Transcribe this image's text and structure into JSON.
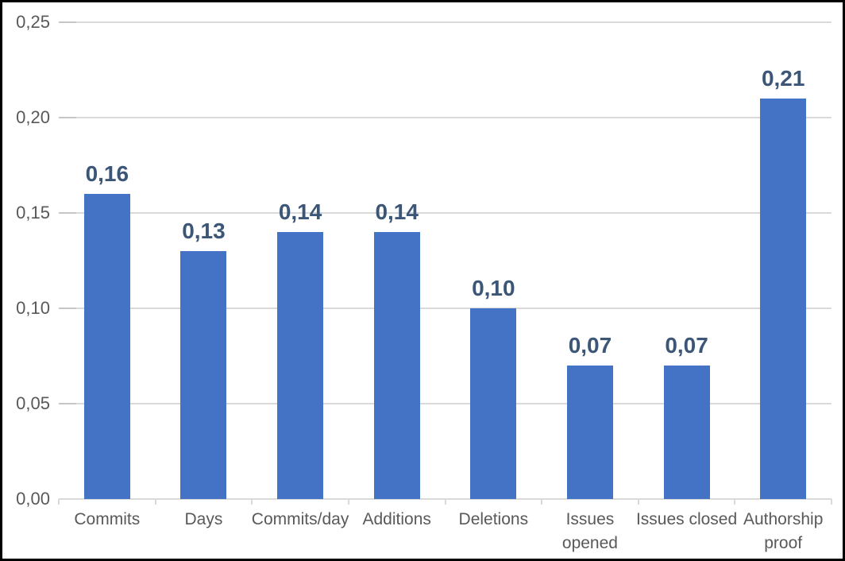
{
  "chart_data": {
    "type": "bar",
    "categories": [
      "Commits",
      "Days",
      "Commits/day",
      "Additions",
      "Deletions",
      "Issues\nopened",
      "Issues closed",
      "Authorship\nproof"
    ],
    "values": [
      0.16,
      0.13,
      0.14,
      0.14,
      0.1,
      0.07,
      0.07,
      0.21
    ],
    "value_labels": [
      "0,16",
      "0,13",
      "0,14",
      "0,14",
      "0,10",
      "0,07",
      "0,07",
      "0,21"
    ],
    "title": "",
    "xlabel": "",
    "ylabel": "",
    "ylim": [
      0,
      0.25
    ],
    "y_tick_labels": [
      "0,25",
      "0,20",
      "0,15",
      "0,10",
      "0,05",
      "0,00"
    ],
    "y_tick_values": [
      0.25,
      0.2,
      0.15,
      0.1,
      0.05,
      0.0
    ],
    "decimal_separator": ",",
    "grid": "horizontal",
    "legend": "none",
    "colors": {
      "bar_fill": "#4472C4",
      "value_label_text": "#3B5677",
      "axis_text": "#595959",
      "gridline": "#D9D9D9",
      "gridline_tick": "#C6C6C6",
      "frame_border": "#000000",
      "background": "#FFFFFF"
    }
  }
}
